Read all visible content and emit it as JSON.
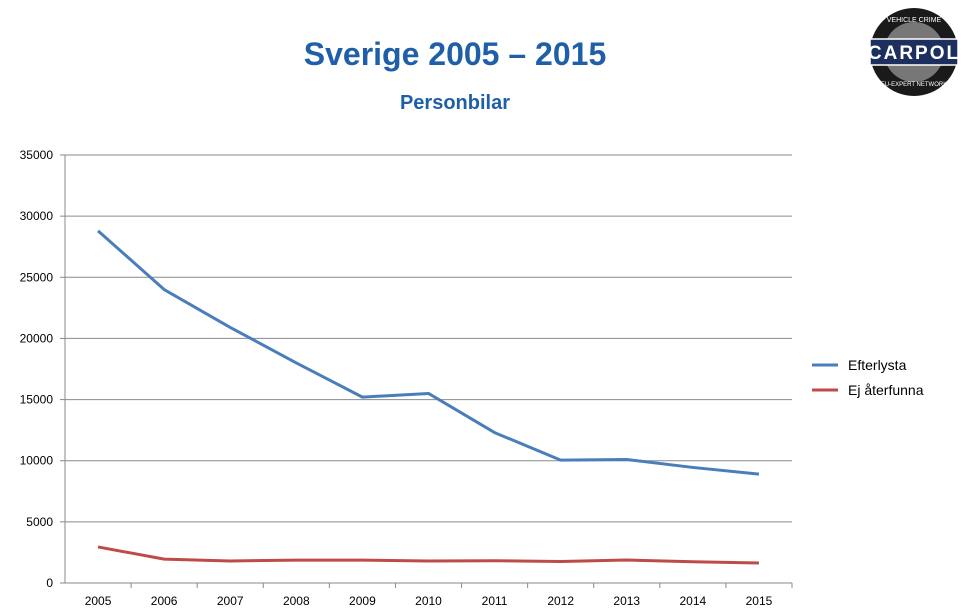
{
  "chart_data": {
    "type": "line",
    "title": "Sverige 2005 – 2015",
    "subtitle": "Personbilar",
    "xlabel": "",
    "ylabel": "",
    "categories": [
      "2005",
      "2006",
      "2007",
      "2008",
      "2009",
      "2010",
      "2011",
      "2012",
      "2013",
      "2014",
      "2015"
    ],
    "ylim": [
      0,
      35000
    ],
    "yticks": [
      0,
      5000,
      10000,
      15000,
      20000,
      25000,
      30000,
      35000
    ],
    "grid": true,
    "legend": "right",
    "series": [
      {
        "name": "Efterlysta",
        "color": "#4a7ebb",
        "values": [
          28800,
          24000,
          20900,
          18000,
          15200,
          15500,
          12300,
          10050,
          10100,
          9450,
          8900
        ]
      },
      {
        "name": "Ej återfunna",
        "color": "#be4b48",
        "values": [
          2950,
          1950,
          1800,
          1870,
          1870,
          1800,
          1820,
          1760,
          1880,
          1740,
          1640
        ]
      }
    ]
  },
  "logo": {
    "top_text": "VEHICLE CRIME",
    "name": "CARPOL",
    "bottom_text": "EU-EXPERT NETWORK"
  }
}
